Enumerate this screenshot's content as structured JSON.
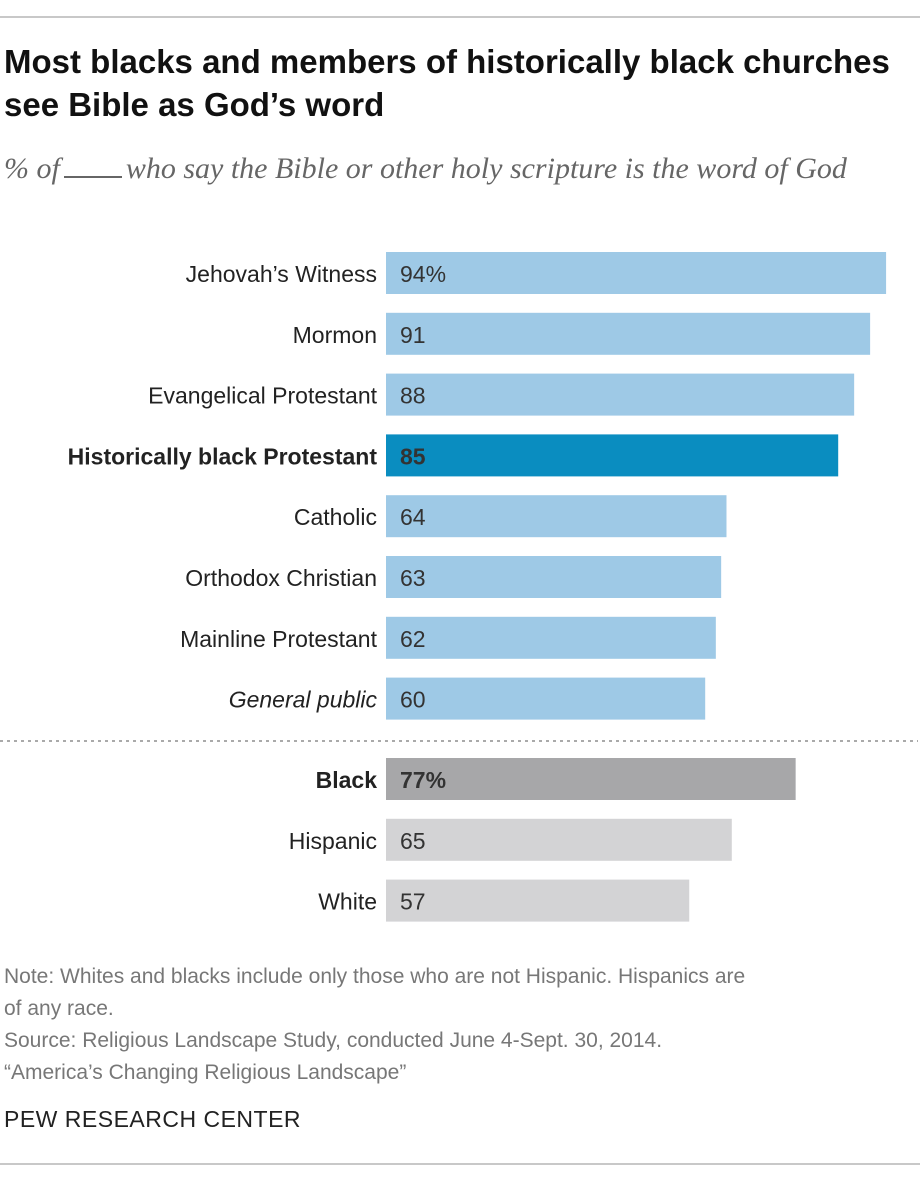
{
  "title": "Most blacks and members of historically black churches see Bible as God’s word",
  "subtitle_pre": "% of",
  "subtitle_post": "who say the Bible or other holy scripture is the word of God",
  "note_lines": [
    "Note: Whites and blacks include only those who are not Hispanic. Hispanics are",
    "of any race.",
    "Source: Religious Landscape Study, conducted June 4-Sept. 30, 2014.",
    "“America’s Changing Religious Landscape”"
  ],
  "brand": "PEW RESEARCH CENTER",
  "colors": {
    "bar_light_blue": "#9ec9e6",
    "bar_highlight_blue": "#0a8dc0",
    "bar_dark_gray": "#a7a7a9",
    "bar_light_gray": "#d3d3d5",
    "divider": "#aaaaaa"
  },
  "chart_data": {
    "type": "bar",
    "orientation": "horizontal",
    "xlim": [
      0,
      100
    ],
    "groups": [
      {
        "name": "",
        "rows": [
          {
            "label": "Jehovah’s Witness",
            "value": 94,
            "value_label": "94%",
            "style": "light-blue"
          },
          {
            "label": "Mormon",
            "value": 91,
            "value_label": "91",
            "style": "light-blue"
          },
          {
            "label": "Evangelical Protestant",
            "value": 88,
            "value_label": "88",
            "style": "light-blue"
          },
          {
            "label": "Historically black Protestant",
            "value": 85,
            "value_label": "85",
            "style": "highlight-blue",
            "bold": true
          },
          {
            "label": "Catholic",
            "value": 64,
            "value_label": "64",
            "style": "light-blue"
          },
          {
            "label": "Orthodox Christian",
            "value": 63,
            "value_label": "63",
            "style": "light-blue"
          },
          {
            "label": "Mainline Protestant",
            "value": 62,
            "value_label": "62",
            "style": "light-blue"
          },
          {
            "label": "General public",
            "value": 60,
            "value_label": "60",
            "style": "light-blue",
            "italic": true
          }
        ]
      },
      {
        "name": "",
        "rows": [
          {
            "label": "Black",
            "value": 77,
            "value_label": "77%",
            "style": "dark-gray",
            "bold": true
          },
          {
            "label": "Hispanic",
            "value": 65,
            "value_label": "65",
            "style": "light-gray"
          },
          {
            "label": "White",
            "value": 57,
            "value_label": "57",
            "style": "light-gray"
          }
        ]
      }
    ]
  }
}
